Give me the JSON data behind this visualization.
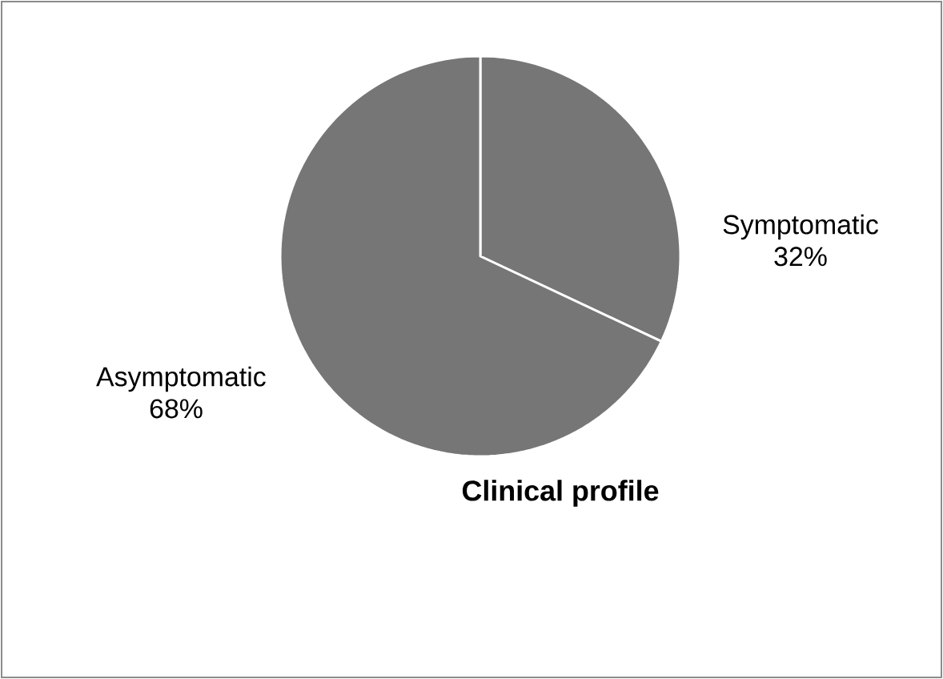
{
  "chart_data": {
    "type": "pie",
    "title": "Clinical profile",
    "categories": [
      "Symptomatic",
      "Asymptomatic"
    ],
    "values": [
      32,
      68
    ],
    "value_labels": [
      "32%",
      "68%"
    ],
    "colors": [
      "#767676",
      "#767676"
    ]
  }
}
